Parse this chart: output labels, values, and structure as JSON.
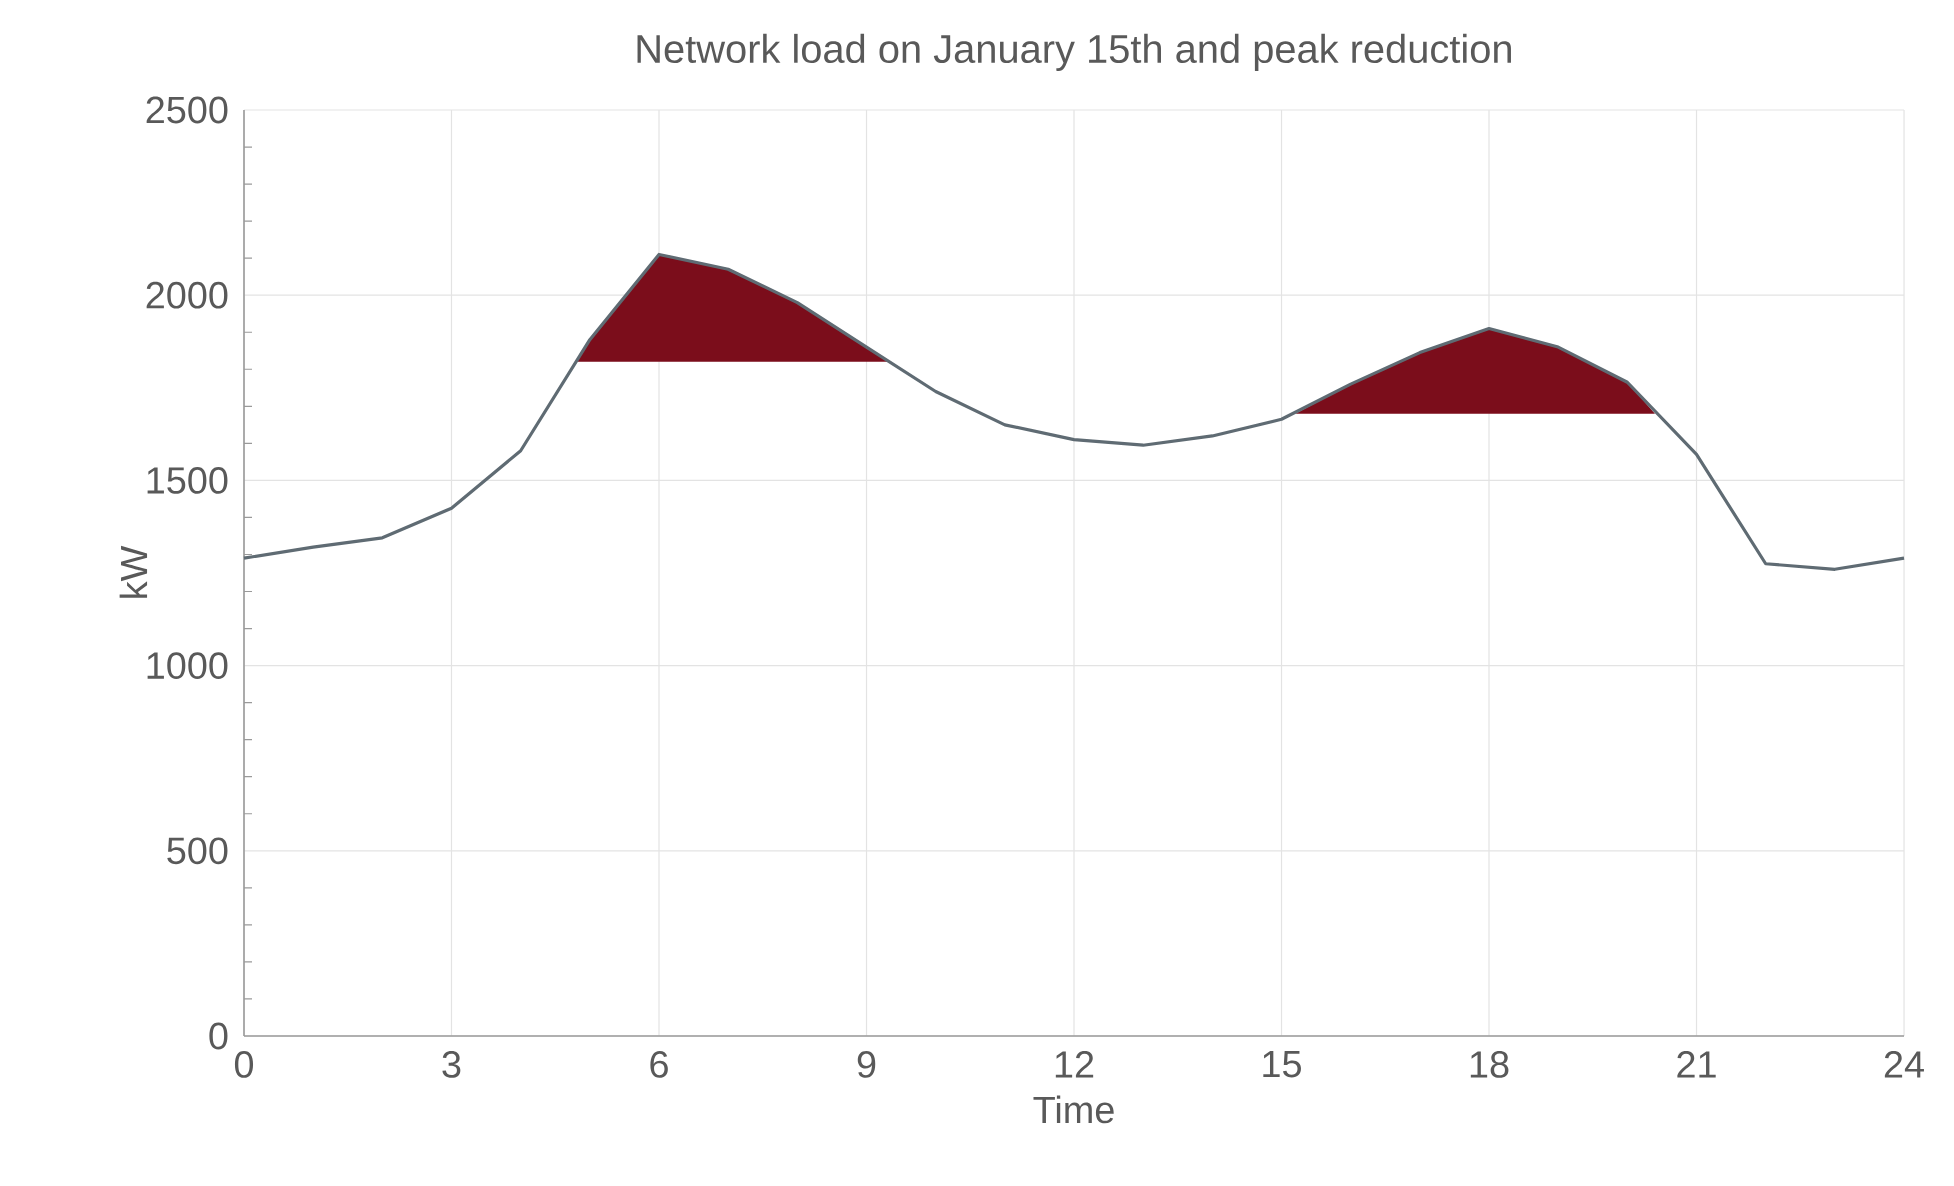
{
  "chart_data": {
    "type": "line",
    "title": "Network load on January 15th and peak reduction",
    "xlabel": "Time",
    "ylabel": "kW",
    "x": [
      0,
      1,
      2,
      3,
      4,
      5,
      6,
      7,
      8,
      9,
      10,
      11,
      12,
      13,
      14,
      15,
      16,
      17,
      18,
      19,
      20,
      21,
      22,
      23,
      24
    ],
    "series": [
      {
        "type": "area",
        "color": "#7b0d1b",
        "x": [
          4.8,
          5,
          6,
          7,
          8,
          9,
          9.35
        ],
        "values": [
          1820,
          1880,
          2110,
          2070,
          1980,
          1860,
          1820
        ]
      },
      {
        "type": "area",
        "color": "#7b0d1b",
        "x": [
          15.2,
          16,
          17,
          18,
          19,
          20,
          20.4
        ],
        "values": [
          1680,
          1760,
          1845,
          1910,
          1860,
          1765,
          1680
        ]
      },
      {
        "color": "#5f6b73",
        "values": [
          1290,
          1320,
          1345,
          1425,
          1580,
          1880,
          2110,
          2070,
          1980,
          1860,
          1740,
          1650,
          1610,
          1595,
          1620,
          1665,
          1760,
          1845,
          1910,
          1860,
          1765,
          1570,
          1275,
          1260,
          1290
        ]
      }
    ],
    "xlim": [
      0,
      24
    ],
    "xticks": [
      0,
      3,
      6,
      9,
      12,
      15,
      18,
      21,
      24
    ],
    "ylim": [
      0,
      2500
    ],
    "yticks": [
      0,
      500,
      1000,
      1500,
      2000,
      2500
    ],
    "grid": true,
    "marker": "none",
    "line_style": "solid"
  }
}
